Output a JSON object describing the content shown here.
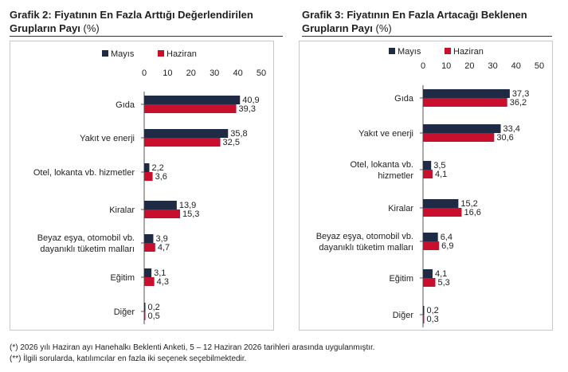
{
  "colors": {
    "mayis": "#1f2a44",
    "haziran": "#c8102e"
  },
  "legend": {
    "mayis": "Mayıs",
    "haziran": "Haziran"
  },
  "footnotes": [
    "(*) 2026 yılı Haziran ayı Hanehalkı Beklenti Anketi, 5 – 12 Haziran 2026 tarihleri arasında uygulanmıştır.",
    "(**) İlgili sorularda, katılımcılar en fazla iki seçenek seçebilmektedir."
  ],
  "chart_data": [
    {
      "type": "bar",
      "orientation": "horizontal",
      "title_bold": "Grafik 2: Fiyatının En Fazla Arttığı Değerlendirilen Grupların Payı",
      "title_unit": "(%)",
      "xlim": [
        0,
        50
      ],
      "xticks": [
        0,
        10,
        20,
        30,
        40,
        50
      ],
      "legend_position": "top",
      "categories": [
        "Gıda",
        "Yakıt ve enerji",
        "Otel, lokanta vb. hizmetler",
        "Kiralar",
        "Beyaz eşya, otomobil vb. dayanıklı tüketim malları",
        "Eğitim",
        "Diğer"
      ],
      "series": [
        {
          "name": "Mayıs",
          "values": [
            40.9,
            35.8,
            2.2,
            13.9,
            3.9,
            3.1,
            0.2
          ],
          "labels": [
            "40,9",
            "35,8",
            "2,2",
            "13,9",
            "3,9",
            "3,1",
            "0,2"
          ]
        },
        {
          "name": "Haziran",
          "values": [
            39.3,
            32.5,
            3.6,
            15.3,
            4.7,
            4.3,
            0.5
          ],
          "labels": [
            "39,3",
            "32,5",
            "3,6",
            "15,3",
            "4,7",
            "4,3",
            "0,5"
          ]
        }
      ]
    },
    {
      "type": "bar",
      "orientation": "horizontal",
      "title_bold": "Grafik 3: Fiyatının En Fazla Artacağı Beklenen Grupların Payı",
      "title_unit": "(%)",
      "xlim": [
        0,
        50
      ],
      "xticks": [
        0,
        10,
        20,
        30,
        40,
        50
      ],
      "legend_position": "top",
      "categories": [
        "Gıda",
        "Yakıt ve enerji",
        "Otel, lokanta vb. hizmetler",
        "Kiralar",
        "Beyaz eşya, otomobil vb. dayanıklı tüketim malları",
        "Eğitim",
        "Diğer"
      ],
      "series": [
        {
          "name": "Mayıs",
          "values": [
            37.3,
            33.4,
            3.5,
            15.2,
            6.4,
            4.1,
            0.2
          ],
          "labels": [
            "37,3",
            "33,4",
            "3,5",
            "15,2",
            "6,4",
            "4,1",
            "0,2"
          ]
        },
        {
          "name": "Haziran",
          "values": [
            36.2,
            30.6,
            4.1,
            16.6,
            6.9,
            5.3,
            0.3
          ],
          "labels": [
            "36,2",
            "30,6",
            "4,1",
            "16,6",
            "6,9",
            "5,3",
            "0,3"
          ]
        }
      ]
    }
  ]
}
